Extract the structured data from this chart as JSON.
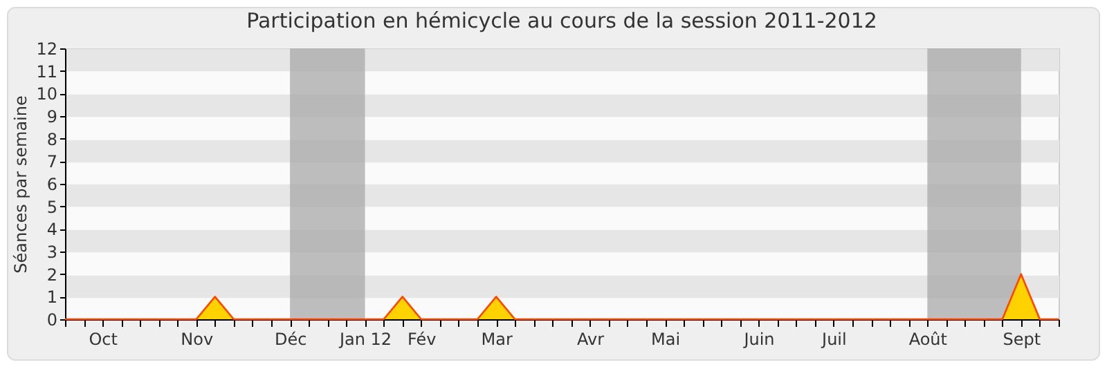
{
  "chart_data": {
    "type": "area",
    "title": "Participation en hémicycle au cours de la session 2011-2012",
    "ylabel": "Séances par semaine",
    "categories": [
      null,
      null,
      "Oct",
      null,
      null,
      null,
      null,
      "Nov",
      null,
      null,
      null,
      null,
      "Déc",
      null,
      null,
      null,
      "Jan 12",
      null,
      null,
      "Fév",
      null,
      null,
      null,
      "Mar",
      null,
      null,
      null,
      null,
      "Avr",
      null,
      null,
      null,
      "Mai",
      null,
      null,
      null,
      null,
      "Juin",
      null,
      null,
      null,
      "Juil",
      null,
      null,
      null,
      null,
      "Août",
      null,
      null,
      null,
      null,
      "Sept",
      null,
      null
    ],
    "series": [
      {
        "color": "#ffd200",
        "values": [
          0,
          0,
          0,
          0,
          0,
          0,
          0,
          0,
          1,
          0,
          0,
          0,
          0,
          0,
          0,
          0,
          0,
          0,
          1,
          0,
          0,
          0,
          0,
          1,
          0,
          0,
          0,
          0,
          0,
          0,
          0,
          0,
          0,
          0,
          0,
          0,
          0,
          0,
          0,
          0,
          0,
          0,
          0,
          0,
          0,
          0,
          0,
          0,
          0,
          0,
          0,
          2,
          0,
          0
        ]
      }
    ],
    "ylim": [
      0,
      12
    ],
    "yticks": [
      0,
      1,
      2,
      3,
      4,
      5,
      6,
      7,
      8,
      9,
      10,
      11,
      12
    ],
    "grid": "y",
    "bands": [
      {
        "axis": "x",
        "from": "Déc",
        "to": "Jan 12",
        "color": "#a8a8a8"
      },
      {
        "axis": "x",
        "from": "Août",
        "to": "Sept",
        "color": "#a8a8a8"
      }
    ]
  }
}
